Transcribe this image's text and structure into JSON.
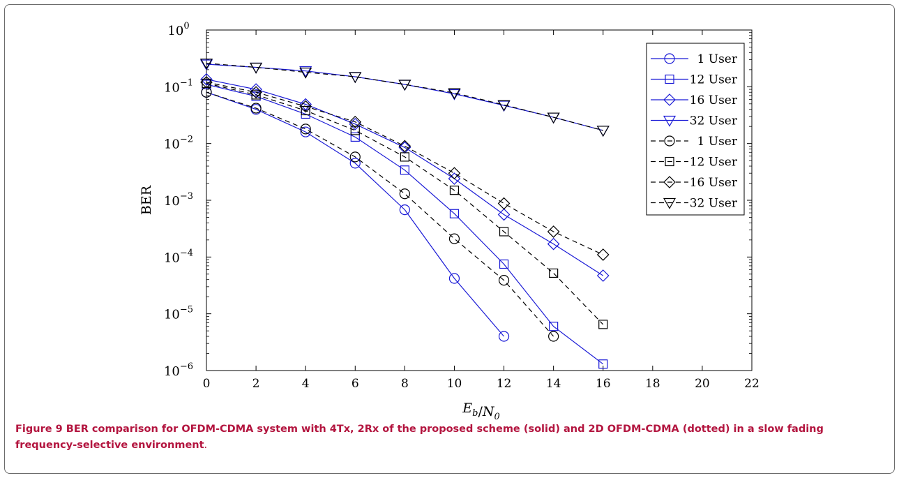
{
  "chart_data": {
    "type": "line",
    "ylabel": "BER",
    "xlabel": "E_b/N_0",
    "y_scale": "log",
    "xlim": [
      0,
      22
    ],
    "ylim": [
      1e-06,
      1
    ],
    "x_ticks": [
      "0",
      "2",
      "4",
      "6",
      "8",
      "10",
      "12",
      "14",
      "16",
      "18",
      "20",
      "22"
    ],
    "y_ticks": [
      {
        "base": "10",
        "exp": "0"
      },
      {
        "base": "10",
        "exp": "−1"
      },
      {
        "base": "10",
        "exp": "−2"
      },
      {
        "base": "10",
        "exp": "−3"
      },
      {
        "base": "10",
        "exp": "−4"
      },
      {
        "base": "10",
        "exp": "−5"
      },
      {
        "base": "10",
        "exp": "−6"
      }
    ],
    "legend_position": "top-right",
    "series": [
      {
        "name": "1 User",
        "style": "solid",
        "color": "#1a1ad6",
        "marker": "circle",
        "x": [
          0,
          2,
          4,
          6,
          8,
          10,
          12
        ],
        "y": [
          0.08,
          0.04,
          0.016,
          0.0045,
          0.00068,
          4.2e-05,
          4e-06
        ]
      },
      {
        "name": "12 User",
        "style": "solid",
        "color": "#1a1ad6",
        "marker": "square",
        "x": [
          0,
          2,
          4,
          6,
          8,
          10,
          12,
          14,
          16
        ],
        "y": [
          0.11,
          0.068,
          0.033,
          0.013,
          0.0034,
          0.00058,
          7.5e-05,
          6e-06,
          1.3e-06
        ]
      },
      {
        "name": "16 User",
        "style": "solid",
        "color": "#1a1ad6",
        "marker": "diamond",
        "x": [
          0,
          2,
          4,
          6,
          8,
          10,
          12,
          14,
          16
        ],
        "y": [
          0.135,
          0.09,
          0.049,
          0.022,
          0.0085,
          0.0024,
          0.00056,
          0.00017,
          4.7e-05
        ]
      },
      {
        "name": "32 User",
        "style": "solid",
        "color": "#1a1ad6",
        "marker": "triangle-down",
        "x": [
          0,
          2,
          4,
          6,
          8,
          10,
          12,
          14,
          16
        ],
        "y": [
          0.25,
          0.22,
          0.19,
          0.15,
          0.11,
          0.075,
          0.047,
          0.029,
          0.017
        ]
      },
      {
        "name": "1 User",
        "style": "dashed",
        "color": "#000000",
        "marker": "circle",
        "x": [
          0,
          2,
          4,
          6,
          8,
          10,
          12,
          14
        ],
        "y": [
          0.08,
          0.042,
          0.018,
          0.0058,
          0.0013,
          0.00021,
          3.9e-05,
          4e-06
        ]
      },
      {
        "name": "12 User",
        "style": "dashed",
        "color": "#000000",
        "marker": "square",
        "x": [
          0,
          2,
          4,
          6,
          8,
          10,
          12,
          14,
          16
        ],
        "y": [
          0.115,
          0.072,
          0.038,
          0.017,
          0.0058,
          0.0015,
          0.00028,
          5.2e-05,
          6.5e-06
        ]
      },
      {
        "name": "16 User",
        "style": "dashed",
        "color": "#000000",
        "marker": "diamond",
        "x": [
          0,
          2,
          4,
          6,
          8,
          10,
          12,
          14,
          16
        ],
        "y": [
          0.12,
          0.08,
          0.045,
          0.024,
          0.009,
          0.003,
          0.00088,
          0.00028,
          0.00011
        ]
      },
      {
        "name": "32 User",
        "style": "dashed",
        "color": "#000000",
        "marker": "triangle-down",
        "x": [
          0,
          2,
          4,
          6,
          8,
          10,
          12,
          14,
          16
        ],
        "y": [
          0.26,
          0.22,
          0.18,
          0.15,
          0.11,
          0.078,
          0.048,
          0.029,
          0.017
        ]
      }
    ]
  },
  "caption": {
    "label": "Figure 9",
    "text": "BER comparison for OFDM-CDMA system with 4Tx, 2Rx of the proposed scheme (solid) and 2D OFDM-CDMA (dotted) in a slow fading frequency-selective environment",
    "period": "."
  }
}
